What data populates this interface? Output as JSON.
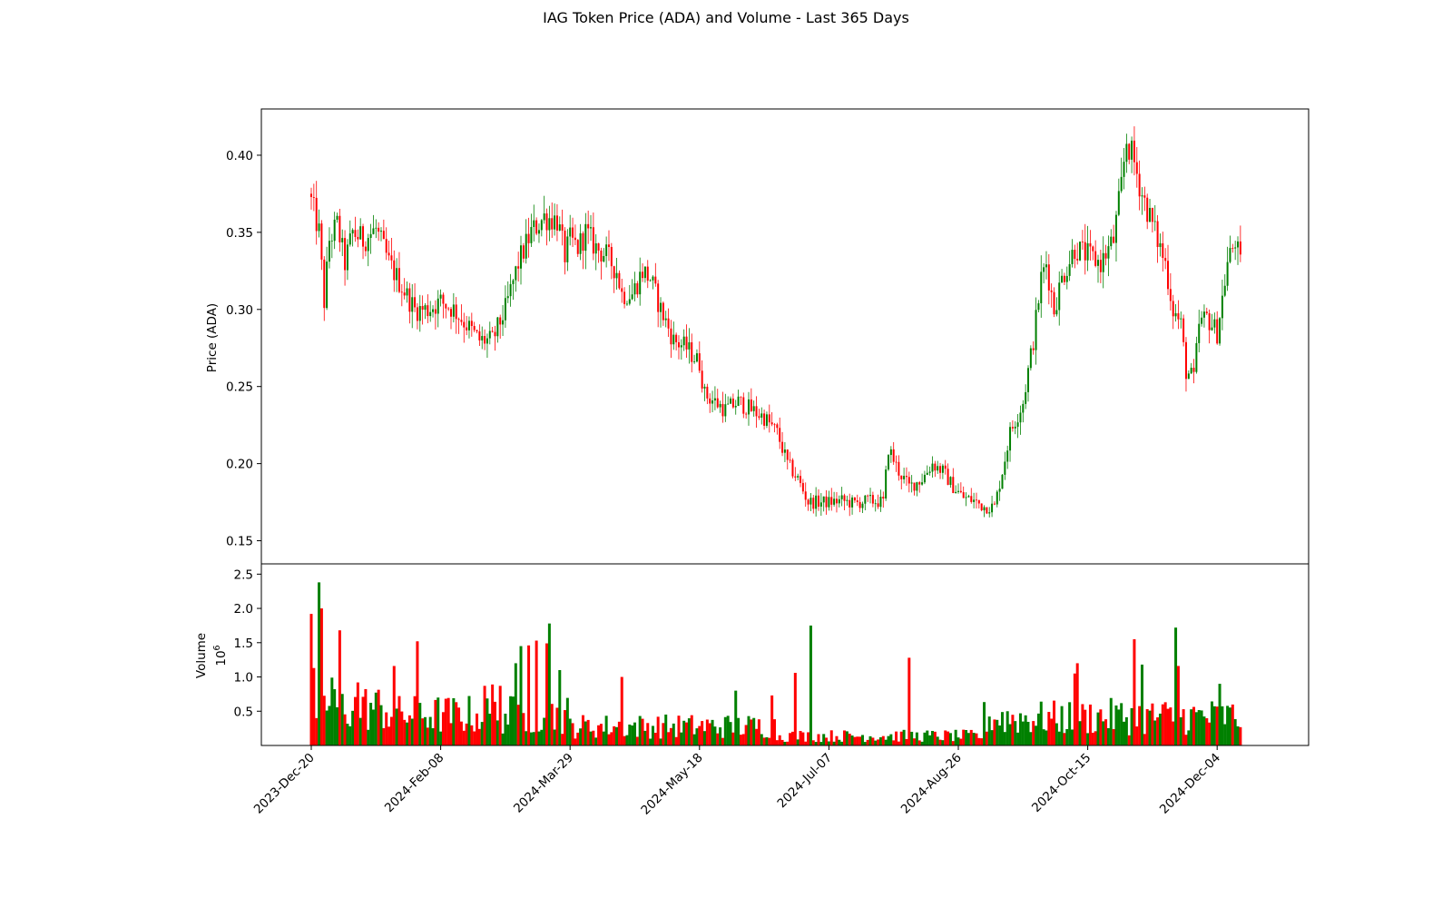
{
  "chart_data": {
    "type": "candlestick",
    "title": "IAG Token Price (ADA) and Volume - Last 365 Days",
    "colors": {
      "up": "#008000",
      "down": "#ff0000",
      "axes": "#000000",
      "background": "#ffffff"
    },
    "price_panel": {
      "ylabel": "Price (ADA)",
      "ylim": [
        0.135,
        0.43
      ],
      "yticks": [
        "0.15",
        "0.20",
        "0.25",
        "0.30",
        "0.35",
        "0.40"
      ],
      "grid": false
    },
    "volume_panel": {
      "ylabel": "Volume",
      "scale_label_base": "10",
      "scale_label_exp": "6",
      "ylim": [
        0,
        2.65
      ],
      "yticks": [
        "0.5",
        "1.0",
        "1.5",
        "2.0",
        "2.5"
      ],
      "grid": false
    },
    "x_axis": {
      "start_date": "2023-12-20",
      "days": 365,
      "ticks": [
        {
          "day": 0,
          "label": "2023-Dec-20"
        },
        {
          "day": 50,
          "label": "2024-Feb-08"
        },
        {
          "day": 100,
          "label": "2024-Mar-29"
        },
        {
          "day": 150,
          "label": "2024-May-18"
        },
        {
          "day": 200,
          "label": "2024-Jul-07"
        },
        {
          "day": 250,
          "label": "2024-Aug-26"
        },
        {
          "day": 300,
          "label": "2024-Oct-15"
        },
        {
          "day": 350,
          "label": "2024-Dec-04"
        }
      ]
    },
    "close_anchors": [
      [
        0,
        0.37
      ],
      [
        3,
        0.35
      ],
      [
        5,
        0.305
      ],
      [
        7,
        0.345
      ],
      [
        10,
        0.355
      ],
      [
        13,
        0.33
      ],
      [
        16,
        0.35
      ],
      [
        20,
        0.345
      ],
      [
        25,
        0.352
      ],
      [
        30,
        0.33
      ],
      [
        35,
        0.315
      ],
      [
        40,
        0.3
      ],
      [
        45,
        0.3
      ],
      [
        50,
        0.305
      ],
      [
        55,
        0.3
      ],
      [
        60,
        0.29
      ],
      [
        65,
        0.28
      ],
      [
        70,
        0.28
      ],
      [
        75,
        0.3
      ],
      [
        80,
        0.33
      ],
      [
        85,
        0.35
      ],
      [
        90,
        0.36
      ],
      [
        95,
        0.358
      ],
      [
        98,
        0.335
      ],
      [
        100,
        0.345
      ],
      [
        103,
        0.34
      ],
      [
        106,
        0.35
      ],
      [
        110,
        0.34
      ],
      [
        114,
        0.335
      ],
      [
        118,
        0.325
      ],
      [
        120,
        0.31
      ],
      [
        124,
        0.31
      ],
      [
        128,
        0.325
      ],
      [
        131,
        0.32
      ],
      [
        135,
        0.3
      ],
      [
        140,
        0.28
      ],
      [
        145,
        0.275
      ],
      [
        150,
        0.265
      ],
      [
        152,
        0.245
      ],
      [
        156,
        0.24
      ],
      [
        160,
        0.235
      ],
      [
        165,
        0.24
      ],
      [
        170,
        0.235
      ],
      [
        175,
        0.23
      ],
      [
        180,
        0.22
      ],
      [
        184,
        0.2
      ],
      [
        188,
        0.19
      ],
      [
        192,
        0.175
      ],
      [
        196,
        0.175
      ],
      [
        200,
        0.175
      ],
      [
        205,
        0.176
      ],
      [
        210,
        0.174
      ],
      [
        215,
        0.176
      ],
      [
        221,
        0.175
      ],
      [
        223,
        0.21
      ],
      [
        227,
        0.195
      ],
      [
        231,
        0.185
      ],
      [
        236,
        0.19
      ],
      [
        240,
        0.2
      ],
      [
        244,
        0.195
      ],
      [
        248,
        0.185
      ],
      [
        252,
        0.178
      ],
      [
        256,
        0.176
      ],
      [
        260,
        0.172
      ],
      [
        264,
        0.172
      ],
      [
        267,
        0.195
      ],
      [
        270,
        0.22
      ],
      [
        275,
        0.24
      ],
      [
        279,
        0.28
      ],
      [
        282,
        0.32
      ],
      [
        284,
        0.33
      ],
      [
        287,
        0.3
      ],
      [
        290,
        0.32
      ],
      [
        295,
        0.34
      ],
      [
        300,
        0.335
      ],
      [
        305,
        0.33
      ],
      [
        310,
        0.345
      ],
      [
        313,
        0.38
      ],
      [
        315,
        0.41
      ],
      [
        318,
        0.395
      ],
      [
        321,
        0.375
      ],
      [
        325,
        0.355
      ],
      [
        330,
        0.33
      ],
      [
        333,
        0.3
      ],
      [
        336,
        0.29
      ],
      [
        338,
        0.26
      ],
      [
        341,
        0.255
      ],
      [
        343,
        0.29
      ],
      [
        346,
        0.295
      ],
      [
        350,
        0.285
      ],
      [
        354,
        0.33
      ],
      [
        357,
        0.345
      ],
      [
        360,
        0.32
      ],
      [
        363,
        0.295
      ],
      [
        366,
        0.28
      ],
      [
        370,
        0.27
      ],
      [
        374,
        0.28
      ],
      [
        377,
        0.29
      ],
      [
        381,
        0.285
      ],
      [
        384,
        0.295
      ],
      [
        387,
        0.3
      ],
      [
        389,
        0.305
      ],
      [
        390,
        0.31
      ]
    ],
    "volume_spikes": [
      [
        0,
        1.92
      ],
      [
        1,
        1.13
      ],
      [
        3,
        2.38
      ],
      [
        4,
        2.0
      ],
      [
        8,
        0.99
      ],
      [
        11,
        1.68
      ],
      [
        18,
        0.92
      ],
      [
        32,
        1.16
      ],
      [
        41,
        1.52
      ],
      [
        67,
        0.87
      ],
      [
        70,
        0.89
      ],
      [
        73,
        0.87
      ],
      [
        79,
        1.2
      ],
      [
        81,
        1.45
      ],
      [
        84,
        1.46
      ],
      [
        87,
        1.53
      ],
      [
        91,
        1.49
      ],
      [
        92,
        1.78
      ],
      [
        96,
        1.1
      ],
      [
        120,
        1.0
      ],
      [
        164,
        0.8
      ],
      [
        178,
        0.73
      ],
      [
        187,
        1.06
      ],
      [
        193,
        1.75
      ],
      [
        231,
        1.28
      ],
      [
        295,
        1.05
      ],
      [
        296,
        1.2
      ],
      [
        318,
        1.55
      ],
      [
        321,
        1.18
      ],
      [
        334,
        1.72
      ],
      [
        335,
        1.16
      ],
      [
        351,
        0.9
      ],
      [
        360,
        0.87
      ],
      [
        372,
        0.91
      ],
      [
        385,
        0.9
      ]
    ]
  }
}
